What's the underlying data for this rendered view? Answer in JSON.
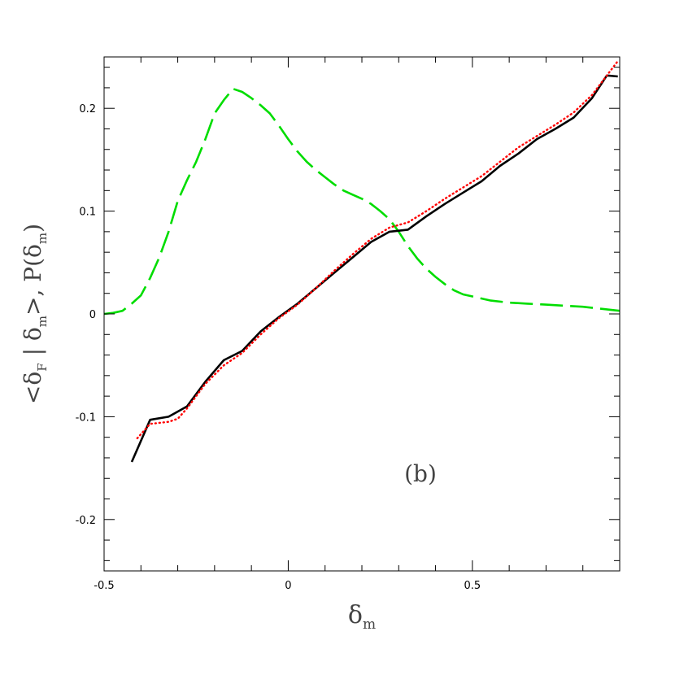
{
  "chart_data": {
    "type": "line",
    "xlabel": {
      "main": "δ",
      "sub": "m"
    },
    "ylabel": {
      "part1": "<δ",
      "sub1": "F",
      "part2": " | δ",
      "sub2": "m",
      "part3": ">,  P(δ",
      "sub3": "m",
      "part4": ")"
    },
    "annotation": "(b)",
    "xlim": [
      -0.5,
      0.9
    ],
    "ylim": [
      -0.25,
      0.25
    ],
    "x_ticks": [
      {
        "value": -0.5,
        "label": "-0.5"
      },
      {
        "value": 0,
        "label": "0"
      },
      {
        "value": 0.5,
        "label": "0.5"
      }
    ],
    "y_ticks": [
      {
        "value": -0.2,
        "label": "-0.2"
      },
      {
        "value": -0.1,
        "label": "-0.1"
      },
      {
        "value": 0,
        "label": "0"
      },
      {
        "value": 0.1,
        "label": "0.1"
      },
      {
        "value": 0.2,
        "label": "0.2"
      }
    ],
    "grid": false,
    "series": [
      {
        "style": "solid",
        "color": "#000000",
        "x": [
          -0.425,
          -0.375,
          -0.325,
          -0.275,
          -0.225,
          -0.175,
          -0.125,
          -0.075,
          -0.025,
          0.025,
          0.075,
          0.125,
          0.175,
          0.225,
          0.275,
          0.325,
          0.375,
          0.425,
          0.475,
          0.525,
          0.575,
          0.625,
          0.675,
          0.725,
          0.775,
          0.825,
          0.865,
          0.895
        ],
        "y": [
          -0.144,
          -0.103,
          -0.1,
          -0.09,
          -0.066,
          -0.045,
          -0.036,
          -0.017,
          -0.003,
          0.01,
          0.025,
          0.04,
          0.055,
          0.07,
          0.08,
          0.082,
          0.095,
          0.107,
          0.118,
          0.129,
          0.144,
          0.156,
          0.17,
          0.18,
          0.191,
          0.21,
          0.232,
          0.231
        ]
      },
      {
        "style": "dotted",
        "color": "#ff0000",
        "x": [
          -0.41,
          -0.375,
          -0.325,
          -0.3,
          -0.275,
          -0.225,
          -0.175,
          -0.125,
          -0.075,
          -0.025,
          0.025,
          0.075,
          0.125,
          0.175,
          0.225,
          0.275,
          0.325,
          0.375,
          0.425,
          0.475,
          0.525,
          0.575,
          0.625,
          0.675,
          0.725,
          0.775,
          0.825,
          0.865,
          0.895
        ],
        "y": [
          -0.121,
          -0.107,
          -0.105,
          -0.102,
          -0.092,
          -0.068,
          -0.05,
          -0.038,
          -0.02,
          -0.004,
          0.009,
          0.025,
          0.042,
          0.058,
          0.073,
          0.084,
          0.089,
          0.1,
          0.112,
          0.123,
          0.134,
          0.148,
          0.162,
          0.173,
          0.184,
          0.196,
          0.213,
          0.232,
          0.246
        ]
      },
      {
        "style": "dashed",
        "color": "#00dd00",
        "x": [
          -0.5,
          -0.475,
          -0.45,
          -0.425,
          -0.4,
          -0.375,
          -0.35,
          -0.325,
          -0.3,
          -0.275,
          -0.25,
          -0.225,
          -0.2,
          -0.175,
          -0.15,
          -0.125,
          -0.1,
          -0.075,
          -0.05,
          -0.025,
          0,
          0.025,
          0.05,
          0.075,
          0.1,
          0.125,
          0.15,
          0.175,
          0.2,
          0.225,
          0.25,
          0.275,
          0.3,
          0.325,
          0.35,
          0.375,
          0.4,
          0.425,
          0.45,
          0.475,
          0.5,
          0.55,
          0.6,
          0.65,
          0.7,
          0.75,
          0.8,
          0.85,
          0.9
        ],
        "y": [
          0.0,
          0.001,
          0.003,
          0.01,
          0.018,
          0.035,
          0.055,
          0.08,
          0.11,
          0.13,
          0.148,
          0.17,
          0.195,
          0.208,
          0.219,
          0.216,
          0.21,
          0.203,
          0.195,
          0.183,
          0.17,
          0.158,
          0.148,
          0.14,
          0.133,
          0.126,
          0.12,
          0.116,
          0.112,
          0.107,
          0.1,
          0.092,
          0.08,
          0.066,
          0.054,
          0.044,
          0.036,
          0.029,
          0.023,
          0.019,
          0.017,
          0.013,
          0.011,
          0.01,
          0.009,
          0.008,
          0.007,
          0.005,
          0.003
        ]
      }
    ]
  }
}
